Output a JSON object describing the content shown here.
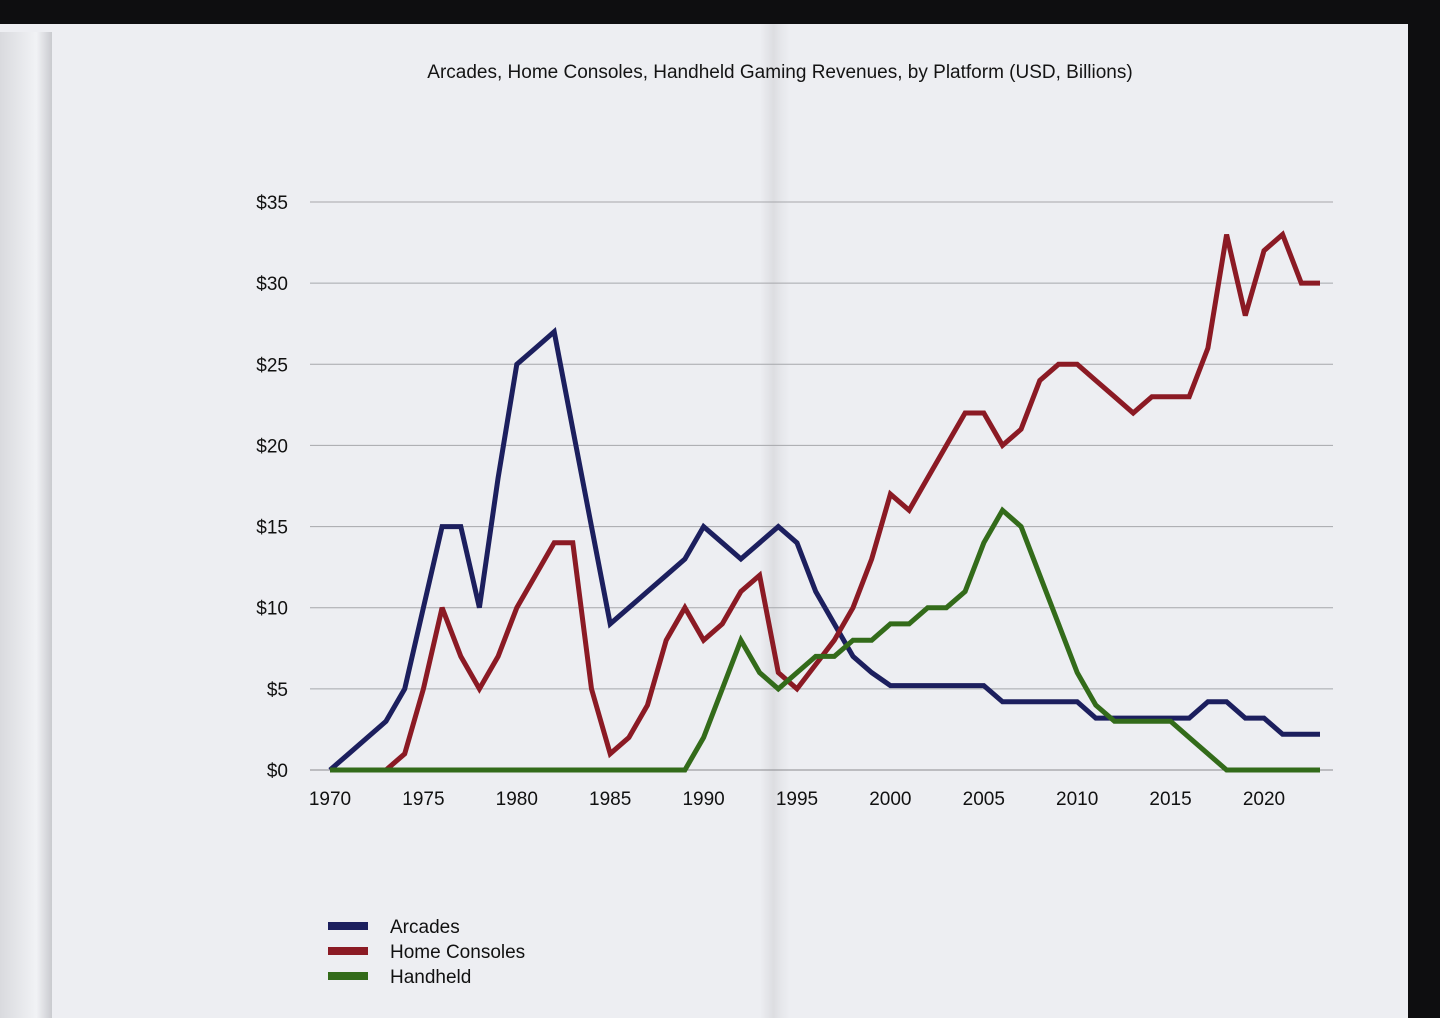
{
  "chart_data": {
    "type": "line",
    "title": "Arcades, Home Consoles, Handheld Gaming Revenues, by Platform (USD, Billions)",
    "xlabel": "",
    "ylabel": "",
    "xlim": [
      1970,
      2023
    ],
    "ylim": [
      0,
      35
    ],
    "x_ticks": [
      "1970",
      "1975",
      "1980",
      "1985",
      "1990",
      "1995",
      "2000",
      "2005",
      "2010",
      "2015",
      "2020"
    ],
    "x_tick_values": [
      1970,
      1975,
      1980,
      1985,
      1990,
      1995,
      2000,
      2005,
      2010,
      2015,
      2020
    ],
    "y_ticks": [
      "$0",
      "$5",
      "$10",
      "$15",
      "$20",
      "$25",
      "$30",
      "$35"
    ],
    "y_tick_values": [
      0,
      5,
      10,
      15,
      20,
      25,
      30,
      35
    ],
    "grid": "horizontal",
    "legend_position": "bottom-left",
    "x": [
      1970,
      1971,
      1972,
      1973,
      1974,
      1975,
      1976,
      1977,
      1978,
      1979,
      1980,
      1981,
      1982,
      1983,
      1984,
      1985,
      1986,
      1987,
      1988,
      1989,
      1990,
      1991,
      1992,
      1993,
      1994,
      1995,
      1996,
      1997,
      1998,
      1999,
      2000,
      2001,
      2002,
      2003,
      2004,
      2005,
      2006,
      2007,
      2008,
      2009,
      2010,
      2011,
      2012,
      2013,
      2014,
      2015,
      2016,
      2017,
      2018,
      2019,
      2020,
      2021,
      2022,
      2023
    ],
    "series": [
      {
        "name": "Arcades",
        "color": "#1c1f5e",
        "values": [
          0,
          1,
          2,
          3,
          5,
          10,
          15,
          15,
          10,
          18,
          25,
          26,
          27,
          21,
          15,
          9,
          10,
          11,
          12,
          13,
          15,
          14,
          13,
          14,
          15,
          14,
          11,
          9,
          7,
          6,
          5.2,
          5.2,
          5.2,
          5.2,
          5.2,
          5.2,
          4.2,
          4.2,
          4.2,
          4.2,
          4.2,
          3.2,
          3.2,
          3.2,
          3.2,
          3.2,
          3.2,
          4.2,
          4.2,
          3.2,
          3.2,
          2.2,
          2.2,
          2.2
        ]
      },
      {
        "name": "Home Consoles",
        "color": "#8b1a24",
        "values": [
          0,
          0,
          0,
          0,
          1,
          5,
          10,
          7,
          5,
          7,
          10,
          12,
          14,
          14,
          5,
          1,
          2,
          4,
          8,
          10,
          8,
          9,
          11,
          12,
          6,
          5,
          6.5,
          8,
          10,
          13,
          17,
          16,
          18,
          20,
          22,
          22,
          20,
          21,
          24,
          25,
          25,
          24,
          23,
          22,
          23,
          23,
          23,
          26,
          33,
          28,
          32,
          33,
          30,
          30
        ]
      },
      {
        "name": "Handheld",
        "color": "#336b1a",
        "values": [
          0,
          0,
          0,
          0,
          0,
          0,
          0,
          0,
          0,
          0,
          0,
          0,
          0,
          0,
          0,
          0,
          0,
          0,
          0,
          0,
          2,
          5,
          8,
          6,
          5,
          6,
          7,
          7,
          8,
          8,
          9,
          9,
          10,
          10,
          11,
          14,
          16,
          15,
          12,
          9,
          6,
          4,
          3,
          3,
          3,
          3,
          2,
          1,
          0,
          0,
          0,
          0,
          0,
          0
        ]
      }
    ]
  }
}
